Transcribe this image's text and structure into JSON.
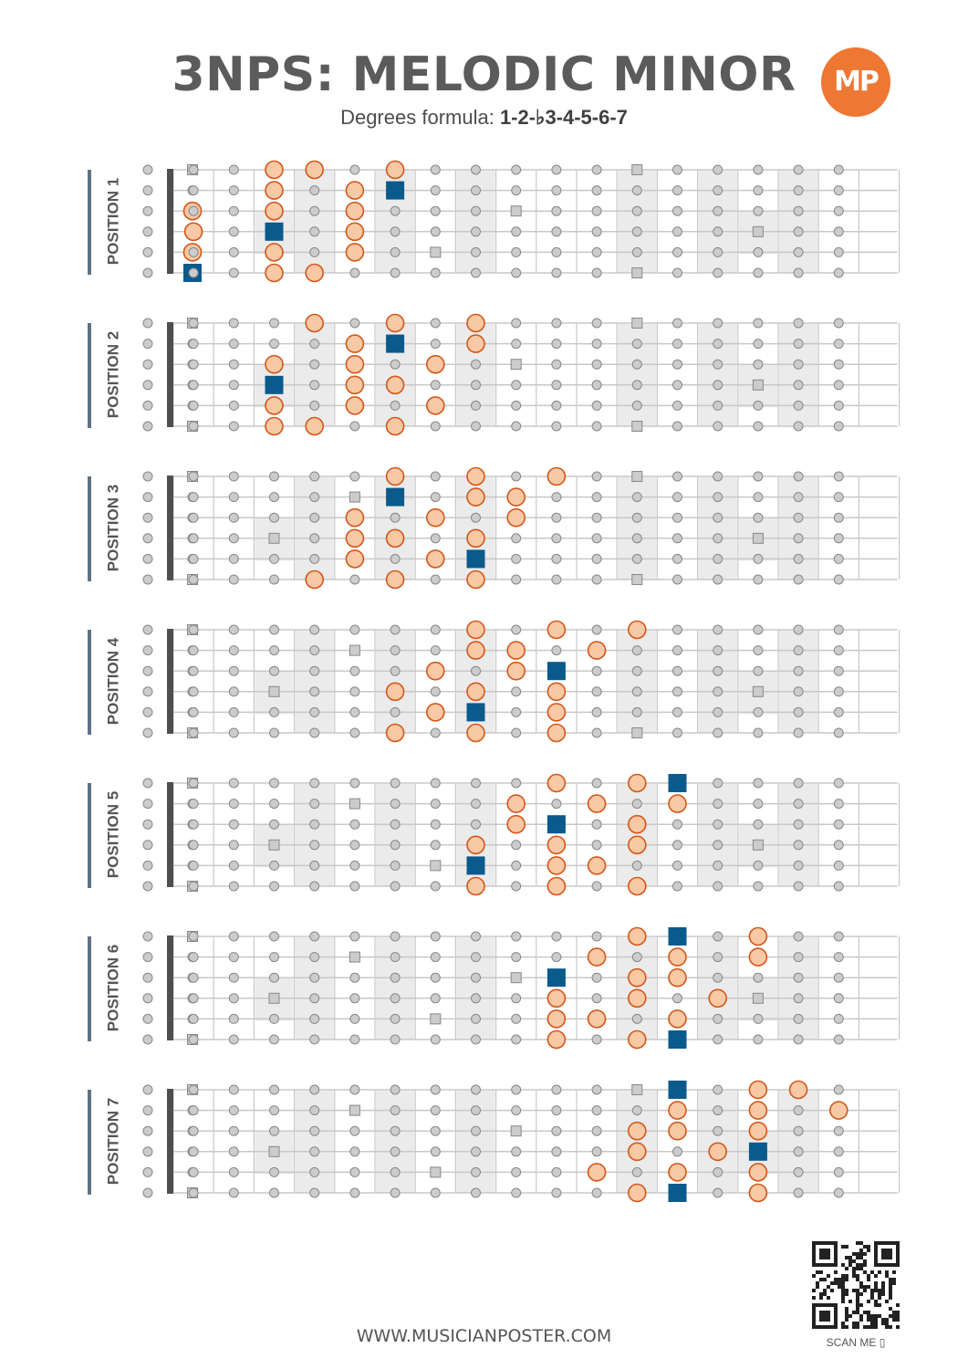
{
  "title": "3NPS: MELODIC MINOR",
  "subtitle": {
    "prefix": "Degrees formula: ",
    "formula": "1-2-♭3-4-5-6-7"
  },
  "logo": {
    "text": "MP"
  },
  "footer": {
    "url": "WWW.MUSICIANPOSTER.COM",
    "scan_label": "SCAN ME"
  },
  "colors": {
    "note": "#f8c9a4",
    "note_border": "#d3561a",
    "root": "#0b5a8c",
    "marker": "#cccccc",
    "fret_shade": "#ebebeb",
    "line": "#c8c8c8",
    "label_bar": "#607286"
  },
  "fretboard": {
    "frets": 17,
    "string_count": 6,
    "shaded_frets": [
      4,
      6,
      8,
      12,
      14,
      16
    ],
    "string_fret_shading": [
      {
        "fret": 3,
        "strings": [
          3,
          4
        ]
      },
      {
        "fret": 15,
        "strings": [
          3,
          4
        ]
      }
    ],
    "square_markers": [
      {
        "string": 1,
        "fret": 0
      },
      {
        "string": 1,
        "fret": 12
      },
      {
        "string": 2,
        "fret": 5
      },
      {
        "string": 3,
        "fret": 9
      },
      {
        "string": 4,
        "fret": 3
      },
      {
        "string": 4,
        "fret": 15
      },
      {
        "string": 5,
        "fret": 7
      },
      {
        "string": 6,
        "fret": 0
      },
      {
        "string": 6,
        "fret": 12
      }
    ]
  },
  "positions": [
    {
      "label": "POSITION 1",
      "notes": [
        [
          1,
          3,
          "n"
        ],
        [
          1,
          4,
          "n"
        ],
        [
          1,
          6,
          "n"
        ],
        [
          2,
          3,
          "n"
        ],
        [
          2,
          5,
          "n"
        ],
        [
          2,
          6,
          "r"
        ],
        [
          3,
          0,
          "n"
        ],
        [
          3,
          3,
          "n"
        ],
        [
          3,
          5,
          "n"
        ],
        [
          4,
          1,
          "n"
        ],
        [
          4,
          3,
          "r"
        ],
        [
          4,
          5,
          "n"
        ],
        [
          5,
          0,
          "n"
        ],
        [
          5,
          3,
          "n"
        ],
        [
          5,
          5,
          "n"
        ],
        [
          6,
          0,
          "r"
        ],
        [
          6,
          3,
          "n"
        ],
        [
          6,
          4,
          "n"
        ]
      ]
    },
    {
      "label": "POSITION 2",
      "notes": [
        [
          1,
          4,
          "n"
        ],
        [
          1,
          6,
          "n"
        ],
        [
          1,
          8,
          "n"
        ],
        [
          2,
          5,
          "n"
        ],
        [
          2,
          6,
          "r"
        ],
        [
          2,
          8,
          "n"
        ],
        [
          3,
          3,
          "n"
        ],
        [
          3,
          5,
          "n"
        ],
        [
          3,
          7,
          "n"
        ],
        [
          4,
          3,
          "r"
        ],
        [
          4,
          5,
          "n"
        ],
        [
          4,
          6,
          "n"
        ],
        [
          5,
          3,
          "n"
        ],
        [
          5,
          5,
          "n"
        ],
        [
          5,
          7,
          "n"
        ],
        [
          6,
          3,
          "n"
        ],
        [
          6,
          4,
          "n"
        ],
        [
          6,
          6,
          "n"
        ]
      ]
    },
    {
      "label": "POSITION 3",
      "notes": [
        [
          1,
          6,
          "n"
        ],
        [
          1,
          8,
          "n"
        ],
        [
          1,
          10,
          "n"
        ],
        [
          2,
          6,
          "r"
        ],
        [
          2,
          8,
          "n"
        ],
        [
          2,
          9,
          "n"
        ],
        [
          3,
          5,
          "n"
        ],
        [
          3,
          7,
          "n"
        ],
        [
          3,
          9,
          "n"
        ],
        [
          4,
          5,
          "n"
        ],
        [
          4,
          6,
          "n"
        ],
        [
          4,
          8,
          "n"
        ],
        [
          5,
          5,
          "n"
        ],
        [
          5,
          7,
          "n"
        ],
        [
          5,
          8,
          "r"
        ],
        [
          6,
          4,
          "n"
        ],
        [
          6,
          6,
          "n"
        ],
        [
          6,
          8,
          "n"
        ]
      ]
    },
    {
      "label": "POSITION 4",
      "notes": [
        [
          1,
          8,
          "n"
        ],
        [
          1,
          10,
          "n"
        ],
        [
          1,
          12,
          "n"
        ],
        [
          2,
          8,
          "n"
        ],
        [
          2,
          9,
          "n"
        ],
        [
          2,
          11,
          "n"
        ],
        [
          3,
          7,
          "n"
        ],
        [
          3,
          9,
          "n"
        ],
        [
          3,
          10,
          "r"
        ],
        [
          4,
          6,
          "n"
        ],
        [
          4,
          8,
          "n"
        ],
        [
          4,
          10,
          "n"
        ],
        [
          5,
          7,
          "n"
        ],
        [
          5,
          8,
          "r"
        ],
        [
          5,
          10,
          "n"
        ],
        [
          6,
          6,
          "n"
        ],
        [
          6,
          8,
          "n"
        ],
        [
          6,
          10,
          "n"
        ]
      ]
    },
    {
      "label": "POSITION 5",
      "notes": [
        [
          1,
          10,
          "n"
        ],
        [
          1,
          12,
          "n"
        ],
        [
          1,
          13,
          "r"
        ],
        [
          2,
          9,
          "n"
        ],
        [
          2,
          11,
          "n"
        ],
        [
          2,
          13,
          "n"
        ],
        [
          3,
          9,
          "n"
        ],
        [
          3,
          10,
          "r"
        ],
        [
          3,
          12,
          "n"
        ],
        [
          4,
          8,
          "n"
        ],
        [
          4,
          10,
          "n"
        ],
        [
          4,
          12,
          "n"
        ],
        [
          5,
          8,
          "r"
        ],
        [
          5,
          10,
          "n"
        ],
        [
          5,
          11,
          "n"
        ],
        [
          6,
          8,
          "n"
        ],
        [
          6,
          10,
          "n"
        ],
        [
          6,
          12,
          "n"
        ]
      ]
    },
    {
      "label": "POSITION 6",
      "notes": [
        [
          1,
          12,
          "n"
        ],
        [
          1,
          13,
          "r"
        ],
        [
          1,
          15,
          "n"
        ],
        [
          2,
          11,
          "n"
        ],
        [
          2,
          13,
          "n"
        ],
        [
          2,
          15,
          "n"
        ],
        [
          3,
          10,
          "r"
        ],
        [
          3,
          12,
          "n"
        ],
        [
          3,
          13,
          "n"
        ],
        [
          4,
          10,
          "n"
        ],
        [
          4,
          12,
          "n"
        ],
        [
          4,
          14,
          "n"
        ],
        [
          5,
          10,
          "n"
        ],
        [
          5,
          11,
          "n"
        ],
        [
          5,
          13,
          "n"
        ],
        [
          6,
          10,
          "n"
        ],
        [
          6,
          12,
          "n"
        ],
        [
          6,
          13,
          "r"
        ]
      ]
    },
    {
      "label": "POSITION 7",
      "notes": [
        [
          1,
          13,
          "r"
        ],
        [
          1,
          15,
          "n"
        ],
        [
          1,
          16,
          "n"
        ],
        [
          2,
          13,
          "n"
        ],
        [
          2,
          15,
          "n"
        ],
        [
          2,
          17,
          "n"
        ],
        [
          3,
          12,
          "n"
        ],
        [
          3,
          13,
          "n"
        ],
        [
          3,
          15,
          "n"
        ],
        [
          4,
          12,
          "n"
        ],
        [
          4,
          14,
          "n"
        ],
        [
          4,
          15,
          "r"
        ],
        [
          5,
          11,
          "n"
        ],
        [
          5,
          13,
          "n"
        ],
        [
          5,
          15,
          "n"
        ],
        [
          6,
          12,
          "n"
        ],
        [
          6,
          13,
          "r"
        ],
        [
          6,
          15,
          "n"
        ]
      ]
    }
  ]
}
